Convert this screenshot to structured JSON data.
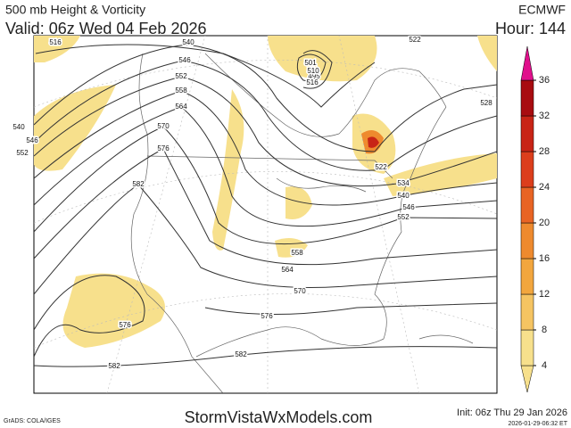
{
  "header": {
    "title": "500 mb Height & Vorticity",
    "valid": "Valid: 06z Wed 04 Feb 2026",
    "source": "ECMWF",
    "hour": "Hour: 144"
  },
  "map": {
    "contour_labels": [
      "516",
      "540",
      "546",
      "552",
      "558",
      "564",
      "570",
      "576",
      "582",
      "540",
      "546",
      "552",
      "501",
      "495",
      "510",
      "516",
      "522",
      "528",
      "522",
      "534",
      "540",
      "546",
      "552",
      "558",
      "564",
      "570",
      "576",
      "576",
      "582",
      "582"
    ]
  },
  "colorbar": {
    "ticks": [
      4,
      8,
      12,
      16,
      20,
      24,
      28,
      32,
      36
    ],
    "colors": [
      "#f7e08c",
      "#f5c462",
      "#f2a63e",
      "#ee8a2e",
      "#e86424",
      "#dc3e1c",
      "#c82416",
      "#a80c10"
    ],
    "top_color": "#e0108c"
  },
  "footer": {
    "credit": "GrADS: COLA/IGES",
    "site": "StormVistaWxModels.com",
    "init": "Init: 06z Thu 29 Jan 2026",
    "timestamp": "2026-01-29-06:32 ET"
  }
}
